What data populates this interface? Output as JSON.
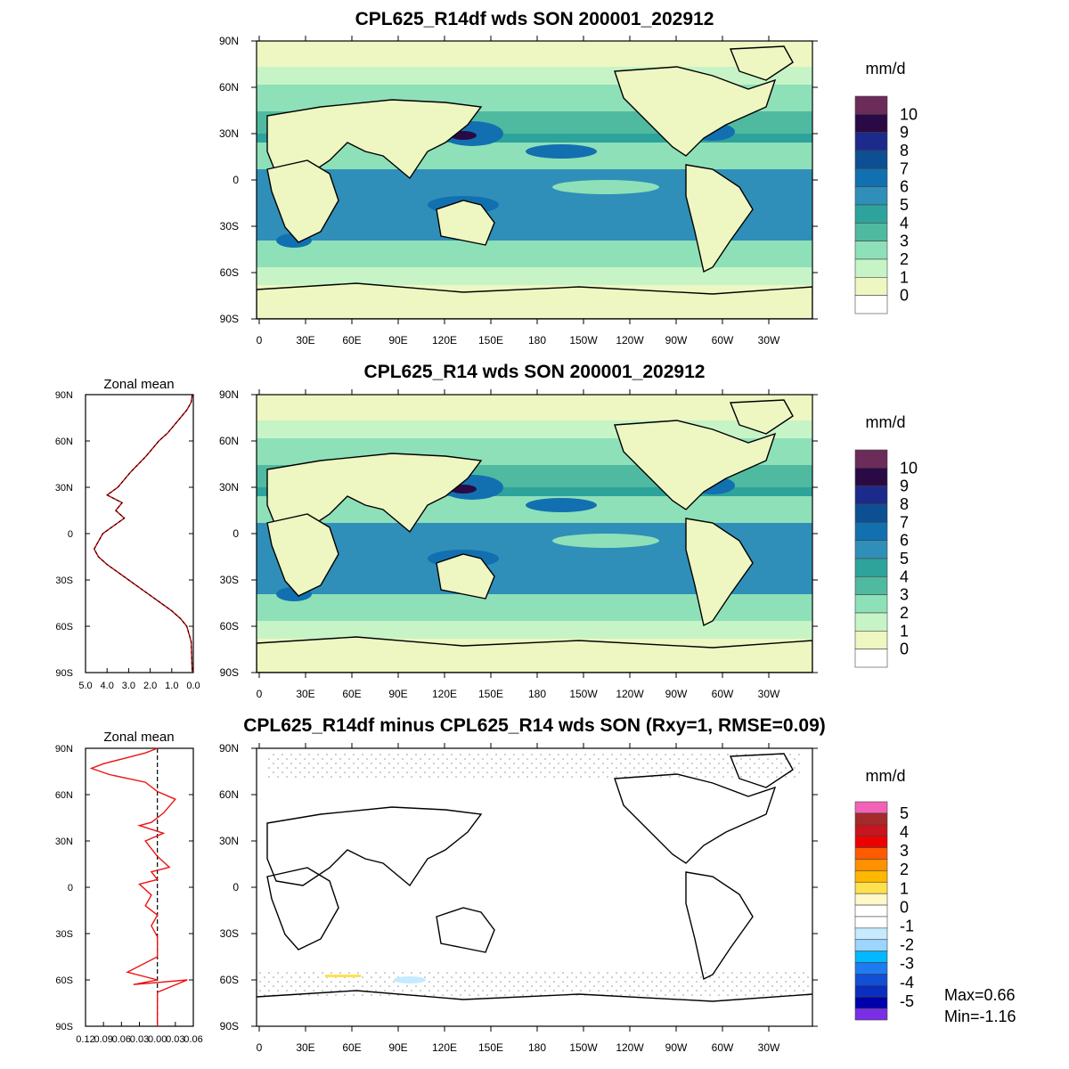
{
  "titles": {
    "map1": "CPL625_R14df wds SON 200001_202912",
    "map2": "CPL625_R14 wds SON 200001_202912",
    "map3": "CPL625_R14df minus CPL625_R14 wds SON (Rxy=1, RMSE=0.09)"
  },
  "units": "mm/d",
  "zonal_title": "Zonal mean",
  "stats": {
    "max": "Max=0.66",
    "min": "Min=-1.16"
  },
  "lat_ticks": [
    "90N",
    "60N",
    "30N",
    "0",
    "30S",
    "60S",
    "90S"
  ],
  "lon_ticks": [
    "0",
    "30E",
    "60E",
    "90E",
    "120E",
    "150E",
    "180",
    "150W",
    "120W",
    "90W",
    "60W",
    "30W"
  ],
  "colorbar_main": {
    "labels": [
      "10",
      "9",
      "8",
      "7",
      "6",
      "5",
      "4",
      "3",
      "2",
      "1",
      "0"
    ],
    "colors": [
      "#6b2c5a",
      "#2a0a45",
      "#1c2a8c",
      "#0c4f92",
      "#1270b0",
      "#2f8fb8",
      "#2ea39c",
      "#4fba9f",
      "#8ee0b9",
      "#c6f4c7",
      "#eef6c2",
      "#ffffff"
    ]
  },
  "colorbar_diff": {
    "labels": [
      "5",
      "4",
      "3",
      "2",
      "1",
      "0",
      "-1",
      "-2",
      "-3",
      "-4",
      "-5"
    ],
    "colors": [
      "#f262b6",
      "#a52a2a",
      "#c8141e",
      "#ee0000",
      "#ff5a00",
      "#ff9000",
      "#ffb700",
      "#ffe14e",
      "#fff8c8",
      "#ffffff",
      "#ffffff",
      "#c6eaff",
      "#9dd5ff",
      "#02b8ff",
      "#1e7cf0",
      "#124fd7",
      "#0a2ebd",
      "#0000aa",
      "#7a2ee5"
    ]
  },
  "chart_data": [
    {
      "type": "line",
      "title": "Zonal mean",
      "x_ticks": [
        "5.0",
        "4.0",
        "3.0",
        "2.0",
        "1.0",
        "0.0"
      ],
      "xlim": [
        5.0,
        0.0
      ],
      "ylim": [
        -90,
        90
      ],
      "series": [
        {
          "x": [
            0.05,
            0.1,
            0.3,
            0.6,
            0.9,
            1.2,
            1.6,
            2.2,
            2.9,
            3.5,
            4.0,
            3.3,
            3.6,
            3.2,
            3.7,
            4.2,
            4.6,
            4.4,
            4.0,
            3.5,
            3.0,
            2.5,
            2.0,
            1.5,
            1.0,
            0.6,
            0.3,
            0.1,
            0.05
          ],
          "y": [
            90,
            85,
            80,
            75,
            70,
            65,
            60,
            50,
            40,
            30,
            25,
            20,
            15,
            10,
            5,
            0,
            -10,
            -15,
            -20,
            -25,
            -30,
            -35,
            -40,
            -45,
            -50,
            -55,
            -60,
            -70,
            -90
          ]
        }
      ]
    },
    {
      "type": "line",
      "title": "Zonal mean",
      "x_ticks": [
        "0.12",
        "0.09",
        "0.06",
        "0.03",
        "0.00",
        "0.03",
        "0.06"
      ],
      "xlim": [
        -0.12,
        0.06
      ],
      "ylim": [
        -90,
        90
      ],
      "series": [
        {
          "x": [
            0.0,
            -0.02,
            -0.05,
            -0.09,
            -0.11,
            -0.08,
            -0.02,
            0.0,
            0.03,
            0.01,
            -0.01,
            -0.03,
            0.01,
            -0.02,
            -0.01,
            0.0,
            0.02,
            -0.01,
            0.0,
            -0.03,
            -0.01,
            -0.02,
            0.0,
            -0.01,
            0.0,
            0.0,
            -0.05,
            0.0,
            -0.04,
            0.05,
            0.0,
            0.0
          ],
          "y": [
            90,
            87,
            84,
            80,
            77,
            73,
            68,
            62,
            57,
            48,
            42,
            40,
            35,
            30,
            25,
            20,
            13,
            10,
            5,
            2,
            -5,
            -12,
            -18,
            -25,
            -32,
            -45,
            -55,
            -60,
            -63,
            -60,
            -68,
            -90
          ]
        }
      ]
    }
  ]
}
